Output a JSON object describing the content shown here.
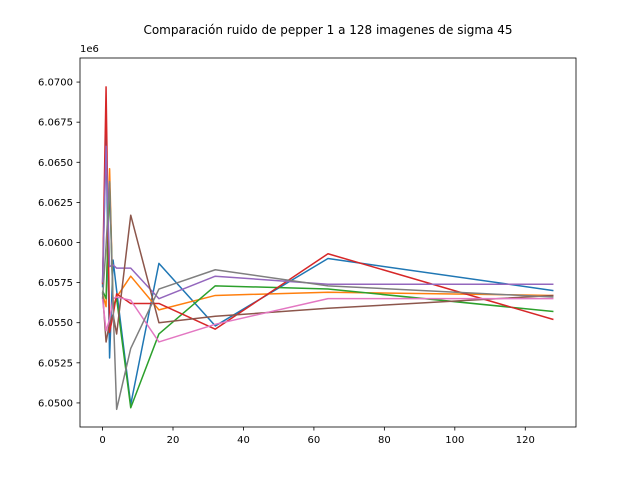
{
  "chart_data": {
    "type": "line",
    "title": "Comparación ruido de pepper 1 a 128 imagenes de sigma 45",
    "xlabel": "",
    "ylabel": "",
    "y_offset_label": "1e6",
    "xlim": [
      -6.4,
      134.4
    ],
    "ylim": [
      6048500,
      6071500
    ],
    "x_ticks": [
      0,
      20,
      40,
      60,
      80,
      100,
      120
    ],
    "x_tick_labels": [
      "0",
      "20",
      "40",
      "60",
      "80",
      "100",
      "120"
    ],
    "y_ticks": [
      6050000,
      6052500,
      6055000,
      6057500,
      6060000,
      6062500,
      6065000,
      6067500,
      6070000
    ],
    "y_tick_labels": [
      "6.0500",
      "6.0525",
      "6.0550",
      "6.0575",
      "6.0600",
      "6.0625",
      "6.0650",
      "6.0675",
      "6.0700"
    ],
    "grid": false,
    "x": [
      0,
      1,
      2,
      3,
      4,
      8,
      16,
      32,
      64,
      128
    ],
    "series": [
      {
        "color": "#1f77b4",
        "values": [
          6057200,
          6066800,
          6052800,
          6058900,
          6057000,
          6049900,
          6058700,
          6054800,
          6059000,
          6057000
        ]
      },
      {
        "color": "#ff7f0e",
        "values": [
          6056800,
          6056000,
          6064600,
          6056000,
          6056600,
          6057900,
          6055800,
          6056700,
          6056900,
          6056700
        ]
      },
      {
        "color": "#2ca02c",
        "values": [
          6057000,
          6056500,
          6063700,
          6056000,
          6056500,
          6049700,
          6054300,
          6057300,
          6057100,
          6055700
        ]
      },
      {
        "color": "#d62728",
        "values": [
          6057400,
          6069700,
          6054400,
          6055500,
          6056800,
          6056200,
          6056200,
          6054600,
          6059300,
          6055200
        ]
      },
      {
        "color": "#9467bd",
        "values": [
          6057500,
          6066000,
          6058500,
          6058600,
          6058400,
          6058400,
          6056500,
          6057900,
          6057400,
          6057400
        ]
      },
      {
        "color": "#8c564b",
        "values": [
          6056900,
          6053800,
          6055000,
          6055500,
          6054300,
          6061700,
          6055000,
          6055400,
          6055900,
          6056700
        ]
      },
      {
        "color": "#e377c2",
        "values": [
          6056500,
          6054500,
          6055200,
          6056500,
          6056600,
          6056400,
          6053800,
          6054900,
          6056500,
          6056500
        ]
      },
      {
        "color": "#7f7f7f",
        "values": [
          6056500,
          6059800,
          6063800,
          6056000,
          6049600,
          6053400,
          6057100,
          6058300,
          6057300,
          6056600
        ]
      }
    ]
  }
}
